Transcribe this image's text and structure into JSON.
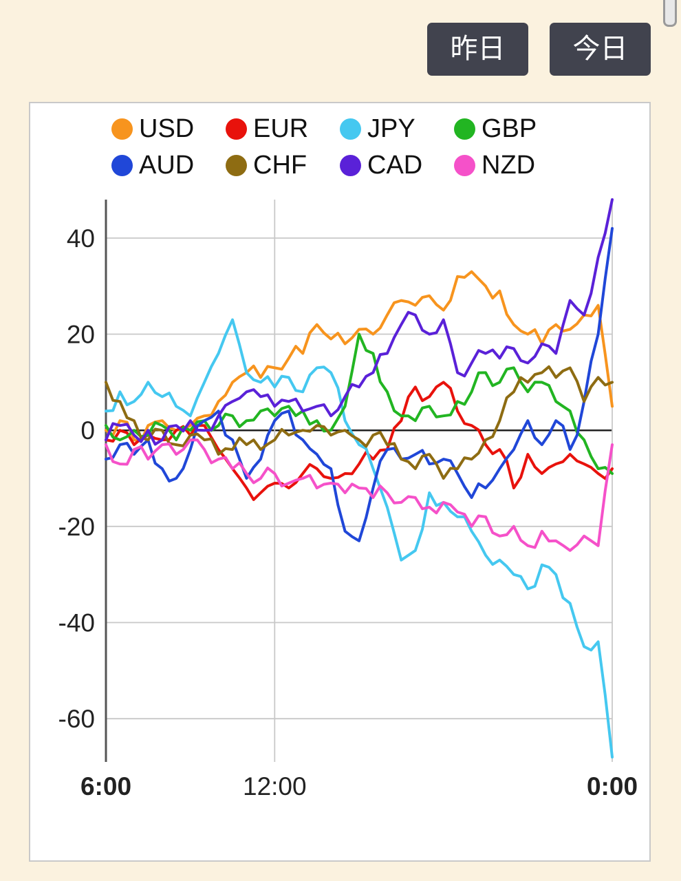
{
  "header": {
    "yesterday_button": "昨日",
    "today_button": "今日"
  },
  "chart_data": {
    "type": "line",
    "title": "",
    "xlabel": "",
    "ylabel": "",
    "grid": true,
    "legend_position": "top",
    "x_range": [
      6,
      24
    ],
    "y_range": [
      -69,
      48
    ],
    "yticks": [
      40,
      20,
      0,
      -20,
      -40,
      -60
    ],
    "xticks": [
      {
        "t": 6,
        "label": "6:00",
        "bold": true
      },
      {
        "t": 12,
        "label": "12:00",
        "bold": false
      },
      {
        "t": 24,
        "label": "0:00",
        "bold": true
      }
    ],
    "x": [
      6,
      6.5,
      7,
      7.5,
      8,
      8.5,
      9,
      9.5,
      10,
      10.5,
      11,
      11.5,
      12,
      12.5,
      13,
      13.5,
      14,
      14.5,
      15,
      15.5,
      16,
      16.5,
      17,
      17.5,
      18,
      18.5,
      19,
      19.5,
      20,
      20.5,
      21,
      21.5,
      22,
      22.5,
      23,
      23.5,
      24
    ],
    "series": [
      {
        "name": "USD",
        "color": "#F7941E",
        "values": [
          0,
          2,
          -2,
          1,
          2,
          0,
          1,
          3,
          6,
          10,
          12,
          11,
          13,
          15,
          16,
          22,
          19,
          18,
          21,
          20,
          24,
          27,
          26,
          28,
          25,
          32,
          33,
          30,
          29,
          22,
          20,
          18,
          22,
          21,
          24,
          26,
          5
        ]
      },
      {
        "name": "EUR",
        "color": "#E8120C",
        "values": [
          -2,
          0,
          -3,
          -1,
          -2,
          0,
          -1,
          1,
          -4,
          -8,
          -12,
          -13,
          -11,
          -12,
          -9,
          -8,
          -10,
          -9,
          -7,
          -6,
          -4,
          2,
          9,
          7,
          10,
          4,
          1,
          -3,
          -4,
          -12,
          -5,
          -9,
          -7,
          -5,
          -7,
          -9,
          -8
        ]
      },
      {
        "name": "JPY",
        "color": "#45C8F0",
        "values": [
          4,
          8,
          6,
          10,
          7,
          5,
          3,
          10,
          16,
          23,
          12,
          10,
          9,
          11,
          8,
          13,
          12,
          2,
          -3,
          -8,
          -16,
          -27,
          -25,
          -13,
          -15,
          -18,
          -21,
          -26,
          -27,
          -30,
          -33,
          -28,
          -30,
          -36,
          -45,
          -44,
          -68
        ]
      },
      {
        "name": "GBP",
        "color": "#22B522",
        "values": [
          1,
          -2,
          0,
          -1,
          1,
          -2,
          0,
          2,
          1,
          3,
          2,
          4,
          3,
          5,
          4,
          2,
          0,
          5,
          20,
          16,
          8,
          3,
          2,
          5,
          3,
          6,
          8,
          12,
          10,
          13,
          8,
          10,
          6,
          4,
          -2,
          -8,
          -9
        ]
      },
      {
        "name": "AUD",
        "color": "#2047D8",
        "values": [
          -6,
          -3,
          -5,
          -2,
          -8,
          -10,
          -4,
          2,
          4,
          -2,
          -10,
          -6,
          2,
          4,
          -2,
          -5,
          -8,
          -21,
          -23,
          -12,
          -4,
          -6,
          -5,
          -7,
          -6,
          -9,
          -14,
          -12,
          -8,
          -4,
          2,
          -3,
          2,
          -4,
          6,
          20,
          42
        ]
      },
      {
        "name": "CHF",
        "color": "#8E6C12",
        "values": [
          10,
          6,
          2,
          -2,
          0,
          -3,
          -1,
          -2,
          -5,
          -4,
          -3,
          -4,
          -2,
          -1,
          0,
          1,
          -1,
          0,
          -2,
          -1,
          -3,
          -6,
          -8,
          -5,
          -10,
          -8,
          -6,
          -2,
          2,
          8,
          10,
          12,
          11,
          13,
          6,
          11,
          10
        ]
      },
      {
        "name": "CAD",
        "color": "#5A21D8",
        "values": [
          -2,
          1,
          -1,
          0,
          -2,
          1,
          2,
          0,
          3,
          6,
          8,
          7,
          5,
          6,
          4,
          5,
          3,
          7,
          9,
          12,
          16,
          22,
          24,
          20,
          23,
          12,
          14,
          16,
          15,
          17,
          14,
          18,
          16,
          27,
          24,
          36,
          48
        ]
      },
      {
        "name": "NZD",
        "color": "#F551C9",
        "values": [
          -3,
          -7,
          -4,
          -6,
          -3,
          -5,
          -2,
          -4,
          -6,
          -8,
          -9,
          -10,
          -9,
          -11,
          -10,
          -12,
          -11,
          -13,
          -12,
          -14,
          -13,
          -15,
          -14,
          -16,
          -15,
          -17,
          -20,
          -18,
          -22,
          -20,
          -24,
          -21,
          -23,
          -25,
          -22,
          -24,
          -3
        ]
      }
    ],
    "colors": {
      "grid": "#c8c8c8",
      "zero_line": "#222222",
      "axis": "#555555",
      "tick_text": "#222222"
    }
  }
}
